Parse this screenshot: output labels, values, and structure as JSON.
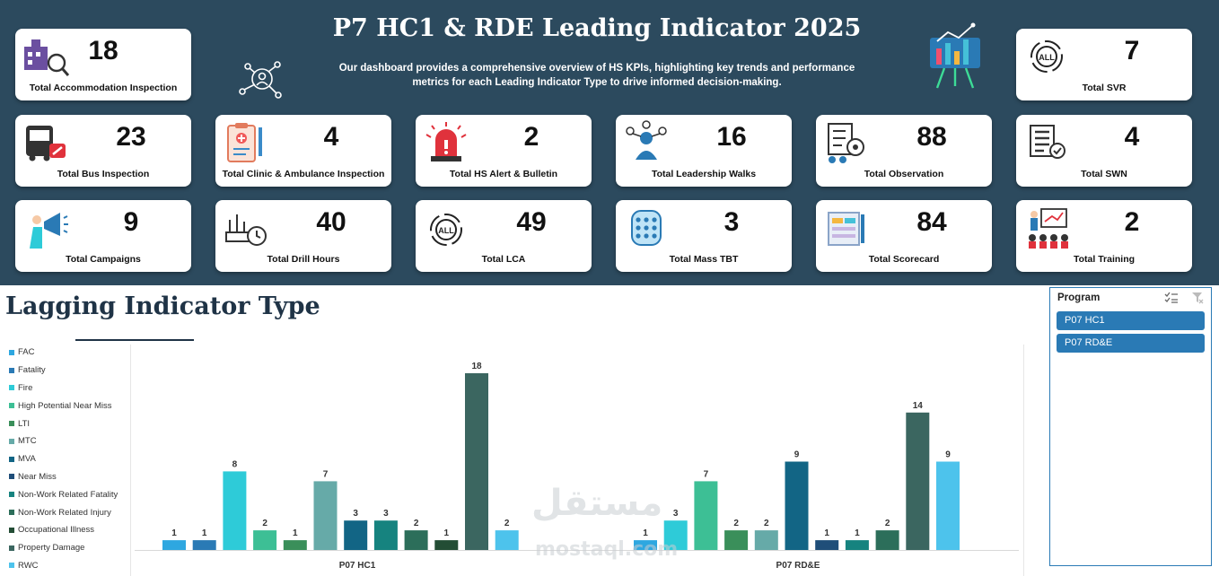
{
  "header": {
    "title": "P7 HC1 & RDE Leading Indicator 2025",
    "subtitle": "Our dashboard provides a comprehensive overview of HS KPIs, highlighting key trends and performance metrics for each Leading Indicator Type to drive informed decision-making."
  },
  "cards": [
    {
      "id": "accommodation",
      "value": "18",
      "label": "Total Accommodation Inspection",
      "icon": "building-inspect-icon"
    },
    {
      "id": "svr",
      "value": "7",
      "label": "Total SVR",
      "icon": "all-cycle-icon"
    },
    {
      "id": "bus",
      "value": "23",
      "label": "Total Bus Inspection",
      "icon": "bus-repair-icon"
    },
    {
      "id": "clinic",
      "value": "4",
      "label": "Total Clinic & Ambulance Inspection",
      "icon": "clipboard-medical-icon"
    },
    {
      "id": "alert",
      "value": "2",
      "label": "Total HS Alert & Bulletin",
      "icon": "siren-icon"
    },
    {
      "id": "leadership",
      "value": "16",
      "label": "Total Leadership Walks",
      "icon": "leader-group-icon"
    },
    {
      "id": "observation",
      "value": "88",
      "label": "Total Observation",
      "icon": "checklist-eye-icon"
    },
    {
      "id": "swn",
      "value": "4",
      "label": "Total SWN",
      "icon": "list-check-icon"
    },
    {
      "id": "campaigns",
      "value": "9",
      "label": "Total Campaigns",
      "icon": "megaphone-icon"
    },
    {
      "id": "drill",
      "value": "40",
      "label": "Total Drill Hours",
      "icon": "drill-clock-icon"
    },
    {
      "id": "lca",
      "value": "49",
      "label": "Total LCA",
      "icon": "all-cycle-icon"
    },
    {
      "id": "tbt",
      "value": "3",
      "label": "Total Mass TBT",
      "icon": "crowd-cylinder-icon"
    },
    {
      "id": "scorecard",
      "value": "84",
      "label": "Total Scorecard",
      "icon": "scorecard-pencil-icon"
    },
    {
      "id": "training",
      "value": "2",
      "label": "Total Training",
      "icon": "training-board-icon"
    }
  ],
  "lagging": {
    "title": "Lagging Indicator Type"
  },
  "slicer": {
    "title": "Program",
    "items": [
      "P07 HC1",
      "P07 RD&E"
    ]
  },
  "watermark": {
    "arabic": "مستقل",
    "latin": "mostaql.com"
  },
  "chart_data": {
    "type": "bar",
    "title": "Lagging Indicator Type",
    "categories": [
      "P07 HC1",
      "P07 RD&E"
    ],
    "legend_position": "left",
    "grid": false,
    "ylim": [
      0,
      19
    ],
    "series": [
      {
        "name": "FAC",
        "color": "#2ea7e0",
        "values": [
          1,
          1
        ]
      },
      {
        "name": "Fatality",
        "color": "#2a7ab5",
        "values": [
          1,
          0
        ]
      },
      {
        "name": "Fire",
        "color": "#2ecbd8",
        "values": [
          8,
          3
        ]
      },
      {
        "name": "High Potential Near Miss",
        "color": "#3dbf95",
        "values": [
          2,
          7
        ]
      },
      {
        "name": "LTI",
        "color": "#3a8f5a",
        "values": [
          1,
          2
        ]
      },
      {
        "name": "MTC",
        "color": "#66aaa8",
        "values": [
          7,
          2
        ]
      },
      {
        "name": "MVA",
        "color": "#126585",
        "values": [
          3,
          9
        ]
      },
      {
        "name": "Near Miss",
        "color": "#1f4e79",
        "values": [
          0,
          1
        ]
      },
      {
        "name": "Non-Work Related Fatality",
        "color": "#16837f",
        "values": [
          3,
          1
        ]
      },
      {
        "name": "Non-Work Related Injury",
        "color": "#2c6e5a",
        "values": [
          2,
          2
        ]
      },
      {
        "name": "Occupational Illness",
        "color": "#234d35",
        "values": [
          1,
          0
        ]
      },
      {
        "name": "Property Damage",
        "color": "#3b6660",
        "values": [
          18,
          14
        ]
      },
      {
        "name": "RWC",
        "color": "#4dc3ec",
        "values": [
          2,
          9
        ]
      }
    ]
  }
}
